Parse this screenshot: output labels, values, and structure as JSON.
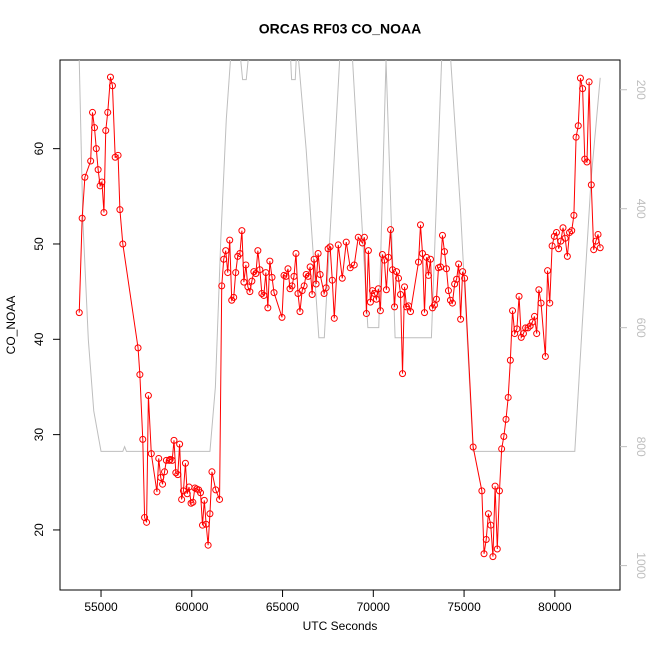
{
  "chart_data": {
    "type": "line",
    "title": "ORCAS RF03 CO_NOAA",
    "x_label": "UTC Seconds",
    "y_label": "CO_NOAA",
    "xlim": [
      52740,
      83590
    ],
    "xticks": [
      55000,
      60000,
      65000,
      70000,
      75000,
      80000
    ],
    "ylim": [
      13.7,
      69.3
    ],
    "yticks": [
      20,
      30,
      40,
      50,
      60
    ],
    "y2lim": [
      1041,
      150
    ],
    "y2ticks": [
      200,
      400,
      600,
      800,
      1000
    ],
    "series": [
      {
        "color": "#ff0000",
        "marker": "circle",
        "x": [
          53800,
          53960,
          54110,
          54430,
          54530,
          54640,
          54740,
          54840,
          54950,
          55050,
          55160,
          55260,
          55370,
          55520,
          55630,
          55780,
          55940,
          56040,
          56200,
          57040,
          57140,
          57300,
          57400,
          57510,
          57610,
          57770,
          58080,
          58180,
          58290,
          58390,
          58500,
          58600,
          58760,
          58810,
          58920,
          59020,
          59120,
          59230,
          59330,
          59440,
          59540,
          59650,
          59750,
          59850,
          59960,
          60060,
          60170,
          60270,
          60380,
          60480,
          60590,
          60690,
          60790,
          60900,
          61000,
          61110,
          61320,
          61530,
          61650,
          61760,
          61870,
          61980,
          62090,
          62200,
          62310,
          62420,
          62530,
          62650,
          62760,
          62870,
          62980,
          63090,
          63200,
          63310,
          63420,
          63530,
          63640,
          63750,
          63860,
          63970,
          64080,
          64190,
          64300,
          64420,
          64530,
          64970,
          65080,
          65190,
          65300,
          65410,
          65520,
          65630,
          65740,
          65850,
          65960,
          66080,
          66190,
          66300,
          66410,
          66520,
          66630,
          66740,
          66850,
          66960,
          67070,
          67290,
          67400,
          67510,
          67620,
          67740,
          67850,
          68070,
          68290,
          68510,
          68730,
          68950,
          69170,
          69400,
          69510,
          69620,
          69730,
          69840,
          69950,
          70060,
          70170,
          70280,
          70390,
          70500,
          70610,
          70720,
          70830,
          70950,
          71060,
          71170,
          71280,
          71390,
          71500,
          71610,
          71720,
          71830,
          71940,
          72050,
          72490,
          72600,
          72710,
          72820,
          72930,
          73040,
          73150,
          73260,
          73370,
          73480,
          73590,
          73700,
          73810,
          73920,
          74030,
          74140,
          74250,
          74360,
          74480,
          74590,
          74700,
          74810,
          74920,
          75030,
          75500,
          75980,
          76100,
          76220,
          76340,
          76470,
          76590,
          76710,
          76830,
          76950,
          77070,
          77190,
          77310,
          77430,
          77550,
          77670,
          77790,
          77910,
          78030,
          78150,
          78270,
          78390,
          78520,
          78640,
          78760,
          78880,
          79000,
          79120,
          79240,
          79480,
          79600,
          79720,
          79850,
          79970,
          80090,
          80210,
          80330,
          80450,
          80570,
          80690,
          80810,
          80930,
          81050,
          81170,
          81290,
          81410,
          81530,
          81650,
          81770,
          81890,
          82010,
          82140,
          82260,
          82380,
          82500
        ],
        "values": [
          42.8,
          52.7,
          57,
          58.7,
          63.8,
          62.2,
          60,
          57.8,
          56.1,
          56.5,
          53.3,
          61.9,
          63.8,
          67.5,
          66.6,
          59.1,
          59.3,
          53.6,
          50,
          39.1,
          36.3,
          29.5,
          21.3,
          20.8,
          34.1,
          28,
          24,
          27.5,
          25.5,
          24.8,
          26.1,
          27.3,
          27.3,
          27.4,
          27.3,
          29.4,
          26,
          25.8,
          29,
          23.2,
          24.1,
          27,
          23.8,
          24.5,
          22.8,
          22.9,
          24.4,
          24.3,
          24.2,
          23.9,
          20.5,
          23.1,
          20.6,
          18.4,
          21.7,
          26.1,
          24.2,
          23.2,
          45.6,
          48.4,
          49.3,
          47,
          50.4,
          44.1,
          44.4,
          47,
          48.7,
          49,
          51.4,
          46,
          47.8,
          45.5,
          45,
          46.1,
          47.1,
          46.9,
          49.3,
          47.3,
          44.8,
          44.6,
          47,
          43.3,
          48.2,
          46.5,
          44.9,
          42.3,
          46.7,
          46.6,
          47.4,
          45.3,
          45.6,
          46.6,
          49,
          44.8,
          42.9,
          45.1,
          45.6,
          46.8,
          46.6,
          47.6,
          44.7,
          48.4,
          45.8,
          49,
          46.8,
          44.8,
          45.4,
          49.5,
          49.7,
          46.2,
          42.2,
          49.9,
          46.4,
          50.2,
          47.5,
          47.8,
          50.7,
          50.1,
          50.7,
          42.7,
          49.3,
          43.9,
          45.1,
          44.8,
          44.2,
          45.3,
          43,
          48.9,
          48.3,
          45.2,
          48.6,
          51.5,
          47.3,
          43.4,
          47.1,
          46.4,
          44.7,
          36.4,
          45.5,
          43.4,
          43.5,
          42.9,
          48.1,
          52,
          49,
          42.8,
          48.6,
          46.7,
          48.4,
          43.3,
          43.6,
          44.2,
          47.5,
          47.6,
          50.9,
          49.2,
          47.4,
          45.1,
          44.1,
          43.8,
          45.8,
          46.3,
          47.9,
          42.1,
          47.1,
          46.4,
          28.7,
          24.1,
          17.5,
          19,
          21.7,
          20.5,
          17.2,
          24.6,
          18,
          24.1,
          28.5,
          29.8,
          31.6,
          33.9,
          37.8,
          43,
          40.6,
          41.1,
          44.5,
          40.2,
          40.6,
          41.2,
          41.2,
          41.4,
          41.8,
          42.4,
          40.6,
          45.2,
          43.8,
          38.2,
          47.2,
          43.8,
          49.8,
          50.8,
          51.2,
          49.5,
          50.3,
          51.7,
          50.6,
          48.7,
          51.2,
          51.4,
          53,
          61.2,
          62.4,
          67.4,
          66.3,
          58.9,
          58.6,
          67,
          56.2,
          49.4,
          50.3,
          51,
          49.6
        ]
      },
      {
        "color": "#bebebe",
        "axis": "y2",
        "x": [
          53700,
          53800,
          54000,
          54300,
          54600,
          55000,
          56200,
          56300,
          56400,
          61000,
          61300,
          61600,
          61900,
          62200,
          62600,
          62800,
          63000,
          63200,
          65400,
          65500,
          65700,
          65800,
          66300,
          67000,
          67300,
          68200,
          68800,
          69700,
          70300,
          70700,
          71200,
          73200,
          73800,
          74200,
          74800,
          75500,
          81100,
          81500,
          82000,
          82500
        ],
        "values": [
          100,
          150,
          420,
          620,
          740,
          808,
          808,
          800,
          808,
          808,
          700,
          450,
          250,
          120,
          120,
          183,
          183,
          120,
          120,
          183,
          183,
          120,
          300,
          617,
          617,
          120,
          120,
          600,
          600,
          150,
          617,
          617,
          120,
          120,
          400,
          808,
          808,
          600,
          350,
          180
        ]
      }
    ]
  }
}
